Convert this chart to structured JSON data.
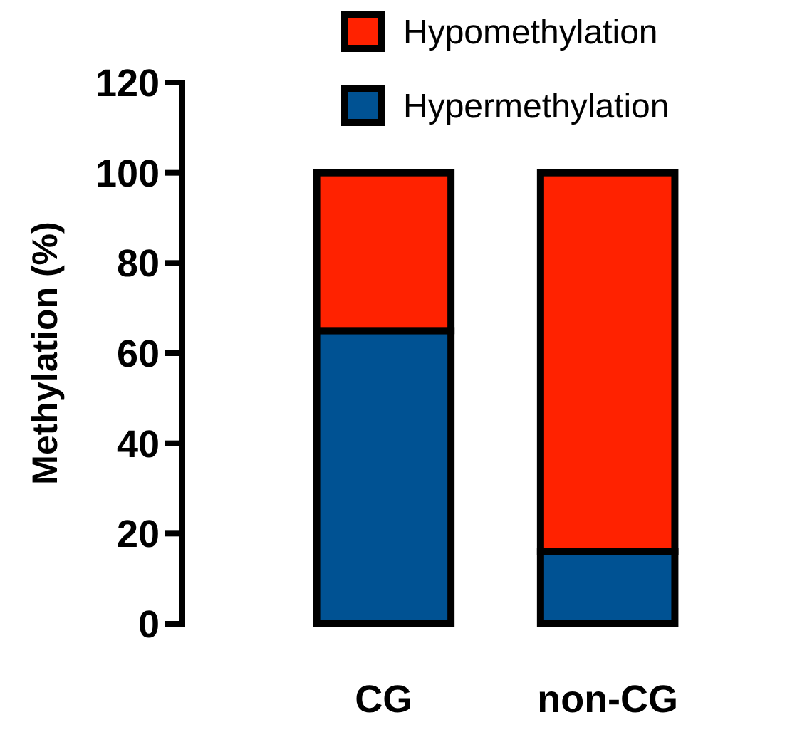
{
  "chart_data": {
    "type": "bar",
    "stacked": true,
    "ylabel": "Methylation (%)",
    "categories": [
      "CG",
      "non-CG"
    ],
    "series": [
      {
        "name": "Hypermethylation",
        "color": "#005293",
        "values": [
          65,
          16
        ]
      },
      {
        "name": "Hypomethylation",
        "color": "#ff2200",
        "values": [
          35,
          84
        ]
      }
    ],
    "ylim": [
      0,
      120
    ],
    "yticks": [
      0,
      20,
      40,
      60,
      80,
      100,
      120
    ],
    "grid": false,
    "legend": "top"
  }
}
